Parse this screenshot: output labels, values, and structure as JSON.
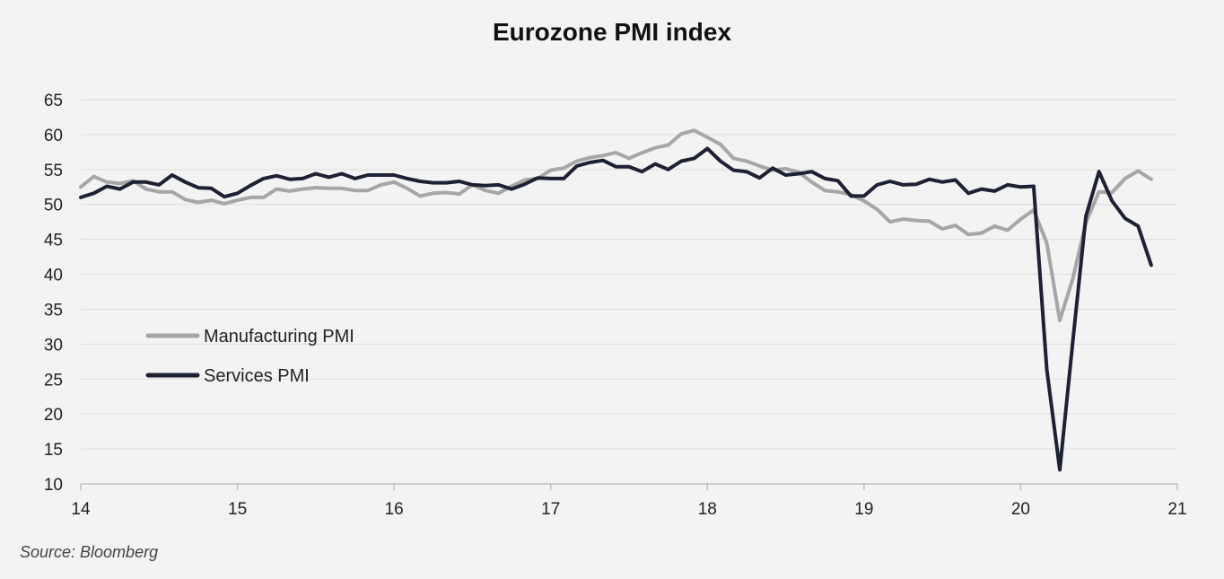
{
  "chart_data": {
    "type": "line",
    "title": "Eurozone PMI index",
    "xlabel": "",
    "ylabel": "",
    "xlim": [
      14,
      21
    ],
    "ylim": [
      10,
      65
    ],
    "x_ticks": [
      "14",
      "15",
      "16",
      "17",
      "18",
      "19",
      "20",
      "21"
    ],
    "y_ticks": [
      "10",
      "15",
      "20",
      "25",
      "30",
      "35",
      "40",
      "45",
      "50",
      "55",
      "60",
      "65"
    ],
    "grid": "horizontal",
    "legend_placement": "center-left",
    "series": [
      {
        "name": "Manufacturing PMI",
        "color": "#a6a6a6",
        "start": 14.0,
        "step": 0.08333,
        "values": [
          52.5,
          54.0,
          53.2,
          53.0,
          53.4,
          52.2,
          51.8,
          51.8,
          50.7,
          50.3,
          50.6,
          50.1,
          50.6,
          51.0,
          51.0,
          52.2,
          51.9,
          52.2,
          52.4,
          52.3,
          52.3,
          52.0,
          52.0,
          52.8,
          53.2,
          52.3,
          51.2,
          51.6,
          51.7,
          51.5,
          52.8,
          52.0,
          51.6,
          52.6,
          53.5,
          53.7,
          54.9,
          55.2,
          56.2,
          56.7,
          57.0,
          57.4,
          56.6,
          57.4,
          58.1,
          58.5,
          60.1,
          60.6,
          59.6,
          58.6,
          56.6,
          56.2,
          55.5,
          54.9,
          55.1,
          54.6,
          53.2,
          52.0,
          51.8,
          51.4,
          50.5,
          49.3,
          47.5,
          47.9,
          47.7,
          47.6,
          46.5,
          47.0,
          45.7,
          45.9,
          46.9,
          46.3,
          47.9,
          49.2,
          44.5,
          33.4,
          39.4,
          47.4,
          51.8,
          51.7,
          53.7,
          54.8,
          53.6
        ]
      },
      {
        "name": "Services PMI",
        "color": "#1d2133",
        "start": 14.0,
        "step": 0.08333,
        "values": [
          51.0,
          51.6,
          52.6,
          52.2,
          53.2,
          53.2,
          52.8,
          54.2,
          53.2,
          52.4,
          52.3,
          51.1,
          51.6,
          52.7,
          53.7,
          54.1,
          53.6,
          53.7,
          54.4,
          53.9,
          54.4,
          53.7,
          54.2,
          54.2,
          54.2,
          53.7,
          53.3,
          53.1,
          53.1,
          53.3,
          52.8,
          52.7,
          52.8,
          52.2,
          52.9,
          53.8,
          53.7,
          53.7,
          55.5,
          56.0,
          56.3,
          55.4,
          55.4,
          54.7,
          55.8,
          55.0,
          56.2,
          56.6,
          58.0,
          56.2,
          54.9,
          54.7,
          53.8,
          55.2,
          54.2,
          54.4,
          54.7,
          53.7,
          53.4,
          51.2,
          51.2,
          52.8,
          53.3,
          52.8,
          52.9,
          53.6,
          53.2,
          53.5,
          51.6,
          52.2,
          51.9,
          52.8,
          52.5,
          52.6,
          26.4,
          12.0,
          30.5,
          48.3,
          54.7,
          50.5,
          48.0,
          46.9,
          41.3
        ]
      }
    ]
  },
  "source": "Source: Bloomberg"
}
